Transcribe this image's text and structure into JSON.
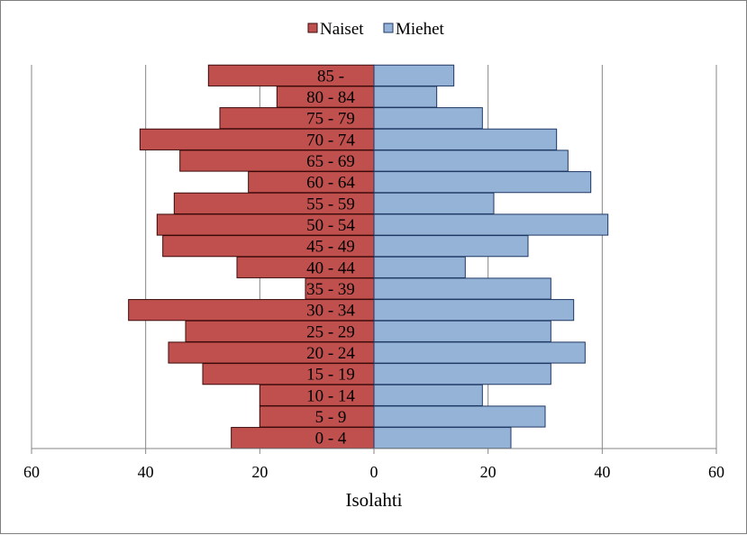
{
  "chart_data": {
    "type": "bar",
    "orientation": "horizontal-diverging",
    "categories": [
      "0 - 4",
      "5 - 9",
      "10 - 14",
      "15 - 19",
      "20 - 24",
      "25 - 29",
      "30 - 34",
      "35 - 39",
      "40 - 44",
      "45 - 49",
      "50 - 54",
      "55 - 59",
      "60 - 64",
      "65 - 69",
      "70 - 74",
      "75 - 79",
      "80 - 84",
      "85 -"
    ],
    "series": [
      {
        "name": "Naiset",
        "color": "#c0504d",
        "side": "left",
        "values": [
          25,
          20,
          20,
          30,
          36,
          33,
          43,
          12,
          24,
          37,
          38,
          35,
          22,
          34,
          41,
          27,
          17,
          29
        ]
      },
      {
        "name": "Miehet",
        "color": "#95b3d7",
        "side": "right",
        "values": [
          24,
          30,
          19,
          31,
          37,
          31,
          35,
          31,
          16,
          27,
          41,
          21,
          38,
          34,
          32,
          19,
          11,
          14
        ]
      }
    ],
    "xlabel": "Isolahti",
    "xlim": [
      -60,
      60
    ],
    "x_ticks": [
      -60,
      -40,
      -20,
      0,
      20,
      40,
      60
    ],
    "x_tick_labels": [
      "60",
      "40",
      "20",
      "0",
      "20",
      "40",
      "60"
    ],
    "grid": "vertical",
    "legend_position": "top-center"
  }
}
